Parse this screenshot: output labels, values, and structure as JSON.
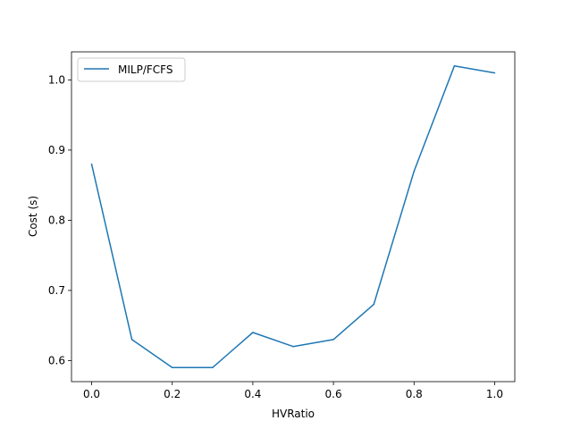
{
  "chart_data": {
    "type": "line",
    "title": "",
    "xlabel": "HVRatio",
    "ylabel": "Cost (s)",
    "xlim": [
      -0.05,
      1.05
    ],
    "ylim": [
      0.57,
      1.04
    ],
    "xticks": [
      0.0,
      0.2,
      0.4,
      0.6,
      0.8,
      1.0
    ],
    "xtick_labels": [
      "0.0",
      "0.2",
      "0.4",
      "0.6",
      "0.8",
      "1.0"
    ],
    "yticks": [
      0.6,
      0.7,
      0.8,
      0.9,
      1.0
    ],
    "ytick_labels": [
      "0.6",
      "0.7",
      "0.8",
      "0.9",
      "1.0"
    ],
    "grid": false,
    "legend_position": "upper-left",
    "series": [
      {
        "name": "MILP/FCFS",
        "color": "#1f77b4",
        "x": [
          0.0,
          0.1,
          0.2,
          0.3,
          0.4,
          0.5,
          0.6,
          0.7,
          0.8,
          0.9,
          1.0
        ],
        "y": [
          0.88,
          0.63,
          0.59,
          0.59,
          0.64,
          0.62,
          0.63,
          0.68,
          0.87,
          1.02,
          1.01
        ]
      }
    ]
  }
}
